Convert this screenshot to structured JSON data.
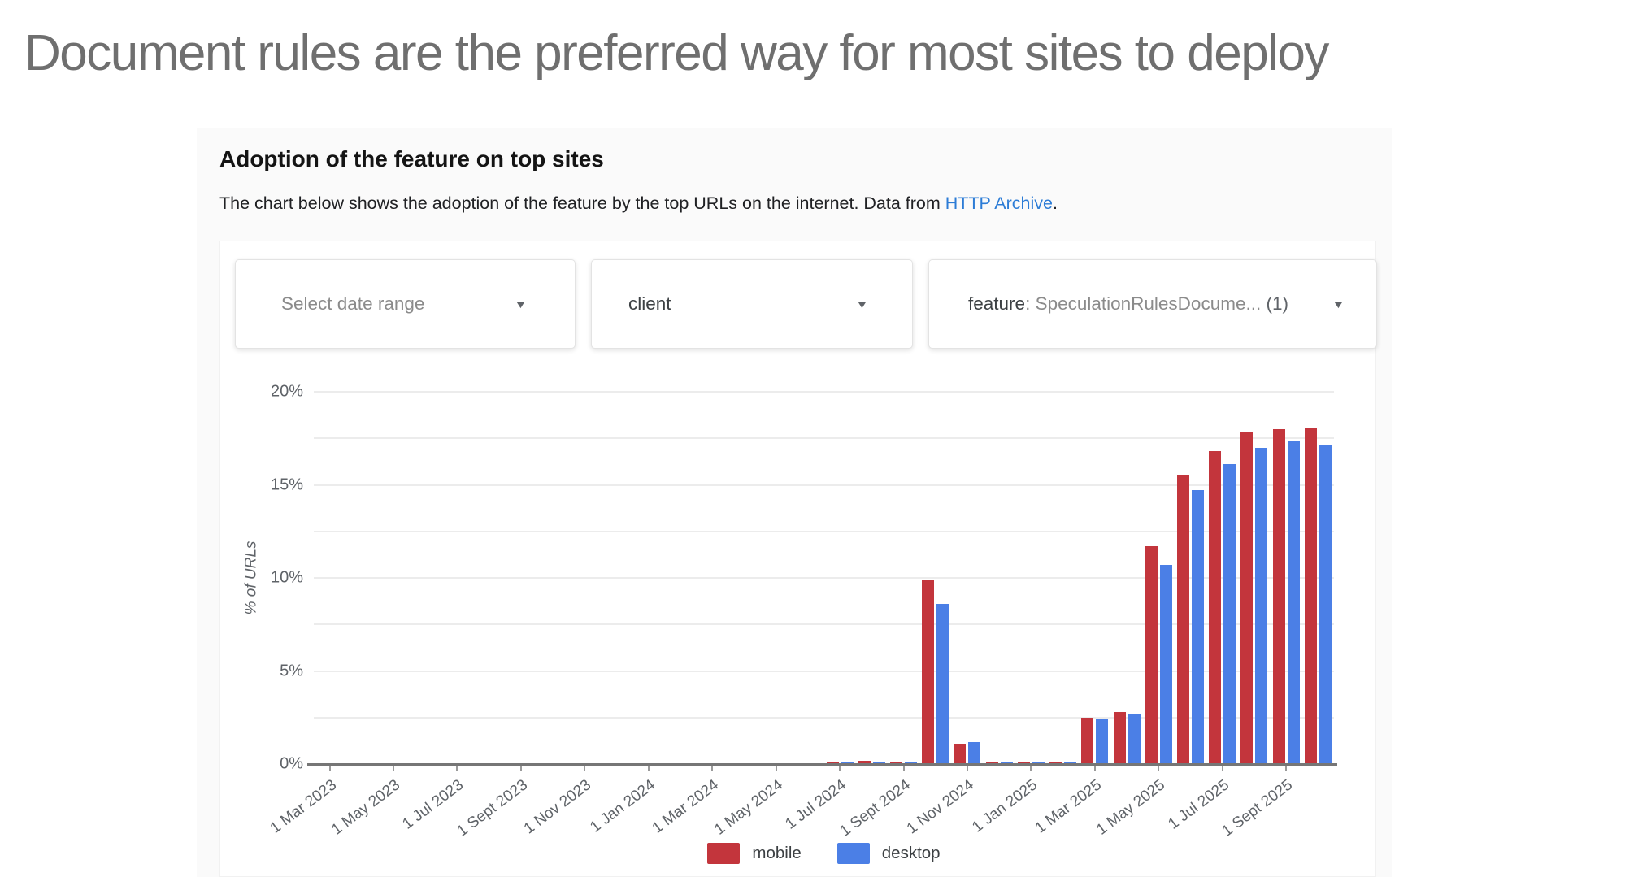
{
  "slide": {
    "title": "Document rules are the preferred way for most sites to deploy"
  },
  "card": {
    "heading": "Adoption of the feature on top sites",
    "description_prefix": "The chart below shows the adoption of the feature by the top URLs on the internet. Data from ",
    "link_text": "HTTP Archive",
    "description_suffix": "."
  },
  "filters": {
    "date_range": {
      "label": "Select date range",
      "caret_icon": "chevron-down"
    },
    "client": {
      "label": "client",
      "caret_icon": "chevron-down"
    },
    "feature": {
      "name": "feature",
      "value": ": SpeculationRulesDocume...",
      "count": "(1)",
      "caret_icon": "chevron-down"
    }
  },
  "chart_data": {
    "type": "bar",
    "title": "Adoption of the feature on top sites",
    "xlabel": "",
    "ylabel": "% of URLs",
    "ylim": [
      0,
      20
    ],
    "y_major_ticks": [
      0,
      5,
      10,
      15,
      20
    ],
    "y_tick_labels": [
      "0%",
      "5%",
      "10%",
      "15%",
      "20%"
    ],
    "y_minor_gridlines": [
      2.5,
      7.5,
      12.5,
      17.5
    ],
    "x_tick_every": 2,
    "grid": true,
    "legend_position": "bottom",
    "categories": [
      "1 Mar 2023",
      "1 Apr 2023",
      "1 May 2023",
      "1 Jun 2023",
      "1 Jul 2023",
      "1 Aug 2023",
      "1 Sept 2023",
      "1 Oct 2023",
      "1 Nov 2023",
      "1 Dec 2023",
      "1 Jan 2024",
      "1 Feb 2024",
      "1 Mar 2024",
      "1 Apr 2024",
      "1 May 2024",
      "1 Jun 2024",
      "1 Jul 2024",
      "1 Aug 2024",
      "1 Sept 2024",
      "1 Oct 2024",
      "1 Nov 2024",
      "1 Dec 2024",
      "1 Jan 2025",
      "1 Feb 2025",
      "1 Mar 2025",
      "1 Apr 2025",
      "1 May 2025",
      "1 Jun 2025",
      "1 Jul 2025",
      "1 Aug 2025",
      "1 Sept 2025",
      "1 Oct 2025"
    ],
    "series": [
      {
        "name": "mobile",
        "color": "#c3353c",
        "values": [
          0,
          0,
          0,
          0,
          0,
          0,
          0,
          0,
          0,
          0,
          0,
          0,
          0,
          0,
          0,
          0.06,
          0.08,
          0.16,
          0.13,
          9.9,
          1.1,
          0.1,
          0.1,
          0.1,
          2.5,
          2.8,
          11.7,
          15.5,
          16.8,
          17.8,
          18.0,
          18.1
        ]
      },
      {
        "name": "desktop",
        "color": "#4b7fe6",
        "values": [
          0,
          0,
          0,
          0,
          0,
          0,
          0,
          0,
          0,
          0,
          0,
          0,
          0,
          0,
          0,
          0.06,
          0.08,
          0.15,
          0.12,
          8.6,
          1.2,
          0.12,
          0.1,
          0.1,
          2.4,
          2.7,
          10.7,
          14.7,
          16.1,
          17.0,
          17.4,
          17.1
        ]
      }
    ]
  }
}
